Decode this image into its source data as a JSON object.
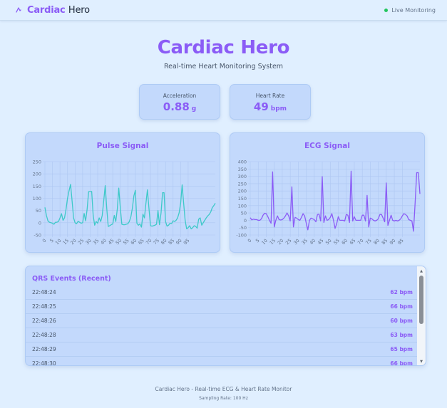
{
  "navbar": {
    "brand_accent": "Cardiac",
    "brand_rest": "Hero",
    "brand_icon": "heartbeat-icon",
    "status_label": "Live Monitoring",
    "status_color": "#22c55e"
  },
  "hero": {
    "title": "Cardiac Hero",
    "subtitle": "Real-time Heart Monitoring System"
  },
  "metrics": [
    {
      "label": "Acceleration",
      "value": "0.88",
      "unit": "g"
    },
    {
      "label": "Heart Rate",
      "value": "49",
      "unit": "bpm"
    }
  ],
  "colors": {
    "accent": "#8b5cf6",
    "pulse_line": "#3ec9c9",
    "ecg_line": "#8b5cf6",
    "card_bg": "#c3d9fc",
    "page_bg": "#e0efff"
  },
  "chart_data": [
    {
      "type": "line",
      "title": "Pulse Signal",
      "xlabel": "",
      "ylabel": "",
      "ylim": [
        -50,
        250
      ],
      "yticks": [
        250,
        200,
        150,
        100,
        50,
        0,
        -50
      ],
      "xticks": [
        0,
        5,
        10,
        15,
        20,
        25,
        30,
        35,
        40,
        45,
        50,
        55,
        60,
        65,
        70,
        75,
        80,
        85,
        90,
        95
      ],
      "grid": true,
      "legend": "none",
      "x_start": 0,
      "values": [
        63,
        30,
        8,
        2,
        0,
        -2,
        -6,
        2,
        2,
        5,
        20,
        37,
        10,
        20,
        55,
        100,
        130,
        157,
        90,
        20,
        0,
        -4,
        6,
        2,
        -2,
        0,
        38,
        8,
        55,
        127,
        128,
        128,
        30,
        -10,
        5,
        -2,
        20,
        5,
        30,
        90,
        152,
        60,
        -15,
        -12,
        -8,
        -5,
        30,
        5,
        55,
        142,
        60,
        -6,
        -8,
        -8,
        -6,
        -4,
        5,
        25,
        60,
        110,
        133,
        -2,
        -10,
        -5,
        -18,
        35,
        20,
        80,
        135,
        60,
        -12,
        -14,
        -12,
        -10,
        -6,
        50,
        -8,
        40,
        123,
        123,
        5,
        -14,
        -10,
        -2,
        -3,
        8,
        5,
        10,
        20,
        40,
        80,
        155,
        80,
        10,
        -25,
        -20,
        -12,
        -25,
        -20,
        -12,
        -15,
        -22,
        15,
        20,
        -10
      ],
      "values_tail": [
        0,
        10,
        20,
        28,
        34,
        45,
        62,
        70,
        80
      ]
    },
    {
      "type": "line",
      "title": "ECG Signal",
      "xlabel": "",
      "ylabel": "",
      "ylim": [
        -100,
        400
      ],
      "yticks": [
        400,
        350,
        300,
        250,
        200,
        150,
        100,
        50,
        0,
        -50,
        -100
      ],
      "xticks": [
        0,
        5,
        10,
        15,
        20,
        25,
        30,
        35,
        40,
        45,
        50,
        55,
        60,
        65,
        70,
        75,
        80,
        85,
        90,
        95
      ],
      "grid": true,
      "legend": "none",
      "x_start": 0,
      "values": [
        18,
        3,
        8,
        5,
        5,
        0,
        0,
        10,
        35,
        48,
        45,
        25,
        0,
        -20,
        330,
        -45,
        0,
        30,
        5,
        2,
        5,
        15,
        30,
        50,
        30,
        -5,
        228,
        -45,
        20,
        15,
        5,
        0,
        20,
        45,
        30,
        -20,
        -65,
        0,
        15,
        10,
        5,
        -10,
        40,
        42,
        -5,
        298,
        -15,
        30,
        0,
        5,
        20,
        45,
        0,
        -55,
        -25,
        25,
        0,
        0,
        0,
        -5,
        40,
        35,
        -15,
        335,
        -5,
        25,
        0,
        0,
        0,
        0,
        35,
        35,
        -5,
        170,
        -45,
        15,
        10,
        0,
        -5,
        0,
        10,
        40,
        40,
        15,
        -10,
        255,
        -35,
        0,
        35,
        0,
        -5,
        0,
        -5,
        0,
        10,
        30,
        45,
        40,
        30,
        5,
        0,
        -5,
        -75,
        120,
        325,
        325,
        180
      ]
    }
  ],
  "qrs": {
    "title": "QRS Events (Recent)",
    "events": [
      {
        "time": "22:48:24",
        "bpm": "62 bpm"
      },
      {
        "time": "22:48:25",
        "bpm": "66 bpm"
      },
      {
        "time": "22:48:26",
        "bpm": "60 bpm"
      },
      {
        "time": "22:48:28",
        "bpm": "63 bpm"
      },
      {
        "time": "22:48:29",
        "bpm": "65 bpm"
      },
      {
        "time": "22:48:30",
        "bpm": "66 bpm"
      }
    ]
  },
  "footer": {
    "line1": "Cardiac Hero - Real-time ECG & Heart Rate Monitor",
    "line2": "Sampling Rate: 100 Hz"
  }
}
